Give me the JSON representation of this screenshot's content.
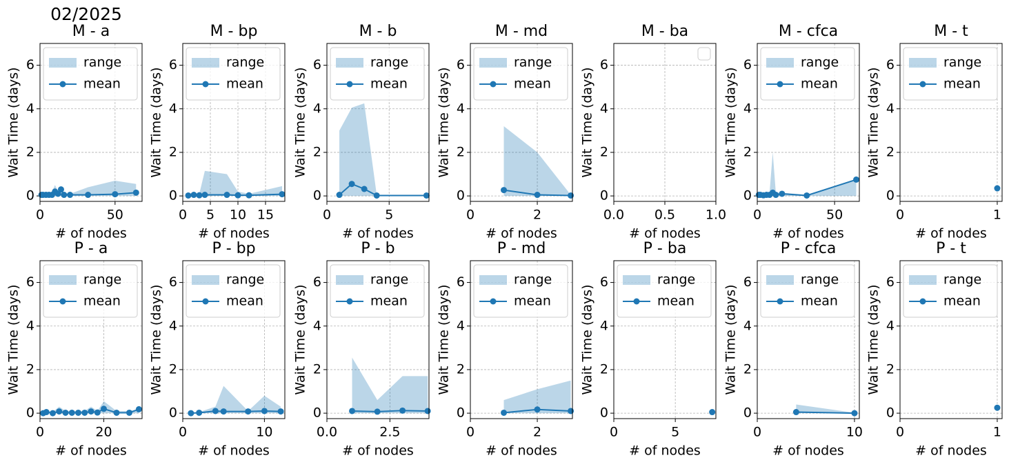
{
  "suptitle": "02/2025",
  "chart_data": [
    {
      "type": "line",
      "title": "M -  a",
      "xlabel": "# of nodes",
      "ylabel": "Wait Time (days)",
      "xlim": [
        0,
        68
      ],
      "xticks": [
        0,
        50
      ],
      "ylim": [
        -0.25,
        7
      ],
      "yticks": [
        0,
        2,
        4,
        6
      ],
      "grid": true,
      "legend": "upper left",
      "x": [
        1,
        2,
        4,
        6,
        8,
        10,
        12,
        14,
        16,
        20,
        32,
        50,
        64
      ],
      "series": [
        {
          "name": "range",
          "color": "#1f77b4",
          "lower": [
            0,
            0,
            0,
            0,
            0,
            0,
            0,
            0,
            0,
            0,
            0,
            0,
            0
          ],
          "upper": [
            0.1,
            0.1,
            0.1,
            0.1,
            0.2,
            0.5,
            0.2,
            0.4,
            0.1,
            0.1,
            0.4,
            0.7,
            0.55
          ]
        },
        {
          "name": "mean",
          "color": "#1f77b4",
          "values": [
            0.05,
            0.05,
            0.05,
            0.05,
            0.05,
            0.2,
            0.1,
            0.3,
            0.05,
            0.05,
            0.05,
            0.08,
            0.15
          ]
        }
      ]
    },
    {
      "type": "line",
      "title": "M -  bp",
      "xlabel": "# of nodes",
      "ylabel": "Wait Time (days)",
      "xlim": [
        0,
        18.5
      ],
      "xticks": [
        0,
        5,
        10,
        15
      ],
      "ylim": [
        -0.25,
        7
      ],
      "yticks": [
        0,
        2,
        4,
        6
      ],
      "grid": true,
      "legend": "upper left",
      "x": [
        1,
        2,
        3,
        4,
        8,
        10,
        12,
        18
      ],
      "series": [
        {
          "name": "range",
          "color": "#1f77b4",
          "lower": [
            0,
            0,
            0,
            0,
            0,
            0,
            0,
            0
          ],
          "upper": [
            0.05,
            0.1,
            0.1,
            1.15,
            1.0,
            0.2,
            0.1,
            0.45
          ]
        },
        {
          "name": "mean",
          "color": "#1f77b4",
          "values": [
            0.02,
            0.05,
            0.03,
            0.05,
            0.05,
            0.03,
            0.03,
            0.08
          ]
        }
      ]
    },
    {
      "type": "line",
      "title": "M -  b",
      "xlabel": "# of nodes",
      "ylabel": "Wait Time (days)",
      "xlim": [
        0,
        8.2
      ],
      "xticks": [
        0,
        5
      ],
      "ylim": [
        -0.25,
        7
      ],
      "yticks": [
        0,
        2,
        4,
        6
      ],
      "grid": true,
      "legend": "upper left",
      "x": [
        1,
        2,
        3,
        4,
        8
      ],
      "series": [
        {
          "name": "range",
          "color": "#1f77b4",
          "lower": [
            0,
            0,
            0,
            0,
            0
          ],
          "upper": [
            3.0,
            4.05,
            4.25,
            0.05,
            0.05
          ]
        },
        {
          "name": "mean",
          "color": "#1f77b4",
          "values": [
            0.05,
            0.55,
            0.32,
            0.02,
            0.02
          ]
        }
      ]
    },
    {
      "type": "line",
      "title": "M -  md",
      "xlabel": "# of nodes",
      "ylabel": "Wait Time (days)",
      "xlim": [
        0,
        3.05
      ],
      "xticks": [
        0,
        2
      ],
      "ylim": [
        -0.25,
        7
      ],
      "yticks": [
        0,
        2,
        4,
        6
      ],
      "grid": true,
      "legend": "upper left",
      "x": [
        1,
        2,
        3
      ],
      "series": [
        {
          "name": "range",
          "color": "#1f77b4",
          "lower": [
            0,
            0,
            0
          ],
          "upper": [
            3.2,
            2.0,
            0.05
          ]
        },
        {
          "name": "mean",
          "color": "#1f77b4",
          "values": [
            0.27,
            0.05,
            0.02
          ]
        }
      ]
    },
    {
      "type": "line",
      "title": "M -  ba",
      "xlabel": "# of nodes",
      "ylabel": "Wait Time (days)",
      "xlim": [
        0,
        1
      ],
      "xticks": [
        {
          "value": 0,
          "label": "0.0"
        },
        {
          "value": 0.5,
          "label": "0.5"
        },
        {
          "value": 1,
          "label": "1.0"
        }
      ],
      "ylim": [
        -0.25,
        7
      ],
      "yticks": [
        0,
        2,
        4,
        6
      ],
      "grid": true,
      "legend": "upper right",
      "x": [],
      "series": []
    },
    {
      "type": "line",
      "title": "M -  cfca",
      "xlabel": "# of nodes",
      "ylabel": "Wait Time (days)",
      "xlim": [
        0,
        66
      ],
      "xticks": [
        0,
        50
      ],
      "ylim": [
        -0.25,
        7
      ],
      "yticks": [
        0,
        2,
        4,
        6
      ],
      "grid": true,
      "legend": "upper left",
      "x": [
        1,
        2,
        4,
        6,
        8,
        10,
        12,
        16,
        32,
        64
      ],
      "series": [
        {
          "name": "range",
          "color": "#1f77b4",
          "lower": [
            0,
            0,
            0,
            0,
            0,
            0,
            0,
            0,
            0,
            0
          ],
          "upper": [
            0.1,
            0.1,
            0.1,
            0.1,
            0.2,
            2.0,
            0.15,
            0.15,
            0.05,
            0.75
          ]
        },
        {
          "name": "mean",
          "color": "#1f77b4",
          "values": [
            0.05,
            0.05,
            0.03,
            0.05,
            0.05,
            0.15,
            0.05,
            0.1,
            0.02,
            0.75
          ]
        }
      ]
    },
    {
      "type": "line",
      "title": "M -  t",
      "xlabel": "# of nodes",
      "ylabel": "Wait Time (days)",
      "xlim": [
        0,
        1.05
      ],
      "xticks": [
        0,
        1
      ],
      "ylim": [
        -0.25,
        7
      ],
      "yticks": [
        0,
        2,
        4,
        6
      ],
      "grid": true,
      "legend": "upper left",
      "x": [
        1
      ],
      "series": [
        {
          "name": "range",
          "color": "#1f77b4",
          "lower": [
            0.35
          ],
          "upper": [
            0.35
          ]
        },
        {
          "name": "mean",
          "color": "#1f77b4",
          "values": [
            0.35
          ]
        }
      ]
    },
    {
      "type": "line",
      "title": "P -  a",
      "xlabel": "# of nodes",
      "ylabel": "Wait Time (days)",
      "xlim": [
        0,
        32
      ],
      "xticks": [
        0,
        20
      ],
      "ylim": [
        -0.25,
        7
      ],
      "yticks": [
        0,
        2,
        4,
        6
      ],
      "grid": true,
      "legend": "upper left",
      "x": [
        1,
        2,
        4,
        6,
        8,
        10,
        12,
        14,
        16,
        18,
        20,
        24,
        28,
        31
      ],
      "series": [
        {
          "name": "range",
          "color": "#1f77b4",
          "lower": [
            0,
            0,
            0,
            0,
            0,
            0,
            0,
            0,
            0,
            0,
            0,
            0,
            0,
            0
          ],
          "upper": [
            0.05,
            0.1,
            0.05,
            0.3,
            0.1,
            0.1,
            0.1,
            0.1,
            0.3,
            0.1,
            0.55,
            0.1,
            0.1,
            0.2
          ]
        },
        {
          "name": "mean",
          "color": "#1f77b4",
          "values": [
            0,
            0.05,
            0,
            0.08,
            0.02,
            0.02,
            0.02,
            0.02,
            0.08,
            0.03,
            0.2,
            0.02,
            0.02,
            0.18
          ]
        }
      ]
    },
    {
      "type": "line",
      "title": "P -  bp",
      "xlabel": "# of nodes",
      "ylabel": "Wait Time (days)",
      "xlim": [
        0,
        12.5
      ],
      "xticks": [
        0,
        10
      ],
      "ylim": [
        -0.25,
        7
      ],
      "yticks": [
        0,
        2,
        4,
        6
      ],
      "grid": true,
      "legend": "upper left",
      "x": [
        1,
        2,
        4,
        5,
        8,
        10,
        12
      ],
      "series": [
        {
          "name": "range",
          "color": "#1f77b4",
          "lower": [
            0,
            0,
            0,
            0,
            0,
            0,
            0
          ],
          "upper": [
            0.02,
            0.05,
            0.3,
            1.25,
            0.1,
            0.8,
            0.3
          ]
        },
        {
          "name": "mean",
          "color": "#1f77b4",
          "values": [
            0,
            0.02,
            0.1,
            0.08,
            0.08,
            0.1,
            0.08
          ]
        }
      ]
    },
    {
      "type": "line",
      "title": "P -  b",
      "xlabel": "# of nodes",
      "ylabel": "Wait Time (days)",
      "xlim": [
        0,
        4.05
      ],
      "xticks": [
        {
          "value": 0,
          "label": "0.0"
        },
        {
          "value": 2.5,
          "label": "2.5"
        }
      ],
      "ylim": [
        -0.25,
        7
      ],
      "yticks": [
        0,
        2,
        4,
        6
      ],
      "grid": true,
      "legend": "upper left",
      "x": [
        1,
        2,
        3,
        4
      ],
      "series": [
        {
          "name": "range",
          "color": "#1f77b4",
          "lower": [
            0,
            0,
            0,
            0
          ],
          "upper": [
            2.55,
            0.6,
            1.7,
            1.7
          ]
        },
        {
          "name": "mean",
          "color": "#1f77b4",
          "values": [
            0.1,
            0.07,
            0.12,
            0.1
          ]
        }
      ]
    },
    {
      "type": "line",
      "title": "P -  md",
      "xlabel": "# of nodes",
      "ylabel": "Wait Time (days)",
      "xlim": [
        0,
        3.05
      ],
      "xticks": [
        0,
        2
      ],
      "ylim": [
        -0.25,
        7
      ],
      "yticks": [
        0,
        2,
        4,
        6
      ],
      "grid": true,
      "legend": "upper left",
      "x": [
        1,
        2,
        3
      ],
      "series": [
        {
          "name": "range",
          "color": "#1f77b4",
          "lower": [
            0,
            0,
            0
          ],
          "upper": [
            0.6,
            1.1,
            1.5
          ]
        },
        {
          "name": "mean",
          "color": "#1f77b4",
          "values": [
            0.02,
            0.17,
            0.1
          ]
        }
      ]
    },
    {
      "type": "line",
      "title": "P -  ba",
      "xlabel": "# of nodes",
      "ylabel": "Wait Time (days)",
      "xlim": [
        0,
        8.3
      ],
      "xticks": [
        0,
        5
      ],
      "ylim": [
        -0.25,
        7
      ],
      "yticks": [
        0,
        2,
        4,
        6
      ],
      "grid": true,
      "legend": "upper left",
      "x": [
        8
      ],
      "series": [
        {
          "name": "range",
          "color": "#1f77b4",
          "lower": [
            0.05
          ],
          "upper": [
            0.05
          ]
        },
        {
          "name": "mean",
          "color": "#1f77b4",
          "values": [
            0.05
          ]
        }
      ]
    },
    {
      "type": "line",
      "title": "P -  cfca",
      "xlabel": "# of nodes",
      "ylabel": "Wait Time (days)",
      "xlim": [
        0,
        10.5
      ],
      "xticks": [
        0,
        10
      ],
      "ylim": [
        -0.25,
        7
      ],
      "yticks": [
        0,
        2,
        4,
        6
      ],
      "grid": true,
      "legend": "upper left",
      "x": [
        4,
        10
      ],
      "series": [
        {
          "name": "range",
          "color": "#1f77b4",
          "lower": [
            0,
            0
          ],
          "upper": [
            0.4,
            0.02
          ]
        },
        {
          "name": "mean",
          "color": "#1f77b4",
          "values": [
            0.05,
            0
          ]
        }
      ]
    },
    {
      "type": "line",
      "title": "P -  t",
      "xlabel": "# of nodes",
      "ylabel": "Wait Time (days)",
      "xlim": [
        0,
        1.05
      ],
      "xticks": [
        0,
        1
      ],
      "ylim": [
        -0.25,
        7
      ],
      "yticks": [
        0,
        2,
        4,
        6
      ],
      "grid": true,
      "legend": "upper left",
      "x": [
        1
      ],
      "series": [
        {
          "name": "range",
          "color": "#1f77b4",
          "lower": [
            0.25
          ],
          "upper": [
            0.25
          ]
        },
        {
          "name": "mean",
          "color": "#1f77b4",
          "values": [
            0.25
          ]
        }
      ]
    }
  ]
}
